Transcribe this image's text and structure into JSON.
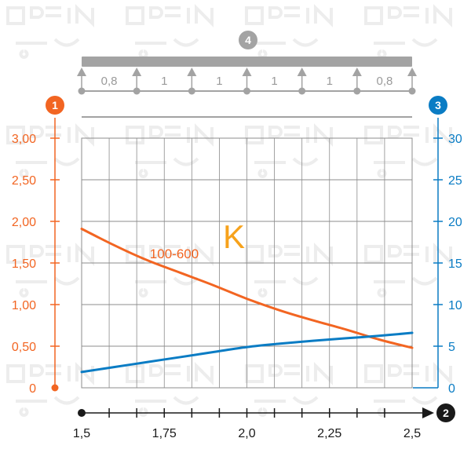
{
  "colors": {
    "left_axis": "#f26522",
    "right_axis": "#0a7cc4",
    "bottom_axis": "#1a1a1a",
    "grid": "#8c8c8c",
    "beam": "#a3a3a3",
    "support": "#a3a3a3",
    "k_letter": "#f7a21b"
  },
  "badges": {
    "left_axis": "1",
    "bottom_axis": "2",
    "right_axis": "3",
    "beam": "4"
  },
  "beam": {
    "spans": [
      "0,8",
      "1",
      "1",
      "1",
      "1",
      "0,8"
    ],
    "support_count": 7
  },
  "chart_data": {
    "type": "line",
    "big_letter": "K",
    "x": {
      "min": 1.5,
      "max": 2.5,
      "ticks": [
        1.5,
        1.75,
        2.0,
        2.25,
        2.5
      ],
      "tick_labels": [
        "1,5",
        "1,75",
        "2,0",
        "2,25",
        "2,5"
      ]
    },
    "y_left": {
      "min": 0,
      "max": 3.0,
      "ticks": [
        0,
        0.5,
        1.0,
        1.5,
        2.0,
        2.5,
        3.0
      ],
      "tick_labels": [
        "0",
        "0,50",
        "1,00",
        "1,50",
        "2,00",
        "2,50",
        "3,00"
      ]
    },
    "y_right": {
      "min": 0,
      "max": 30,
      "ticks": [
        0,
        5,
        10,
        15,
        20,
        25,
        30
      ],
      "tick_labels": [
        "0",
        "5",
        "10",
        "15",
        "20",
        "25",
        "30"
      ]
    },
    "grid": true,
    "series": [
      {
        "name": "100-600",
        "axis": "left",
        "color": "#f26522",
        "points": [
          [
            1.5,
            1.91
          ],
          [
            1.6,
            1.71
          ],
          [
            1.7,
            1.53
          ],
          [
            1.8,
            1.38
          ],
          [
            1.9,
            1.23
          ],
          [
            2.0,
            1.07
          ],
          [
            2.1,
            0.93
          ],
          [
            2.2,
            0.81
          ],
          [
            2.3,
            0.7
          ],
          [
            2.4,
            0.58
          ],
          [
            2.5,
            0.48
          ]
        ]
      },
      {
        "axis": "right",
        "color": "#0a7cc4",
        "points": [
          [
            1.5,
            1.9
          ],
          [
            1.6,
            2.5
          ],
          [
            1.7,
            3.1
          ],
          [
            1.8,
            3.7
          ],
          [
            1.9,
            4.3
          ],
          [
            2.0,
            4.9
          ],
          [
            2.1,
            5.3
          ],
          [
            2.2,
            5.65
          ],
          [
            2.3,
            5.95
          ],
          [
            2.4,
            6.25
          ],
          [
            2.5,
            6.6
          ]
        ]
      }
    ]
  }
}
